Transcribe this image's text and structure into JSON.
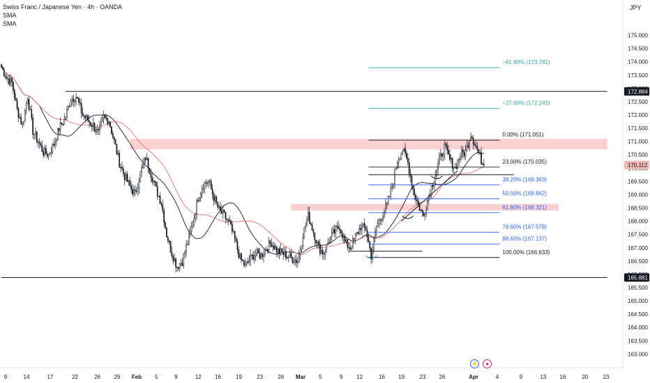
{
  "header": {
    "title": "Swiss Franc / Japanese Yen · 4h · OANDA",
    "indicators": [
      "SMA",
      "SMA"
    ],
    "currency": "JPY"
  },
  "colors": {
    "bull": "#131722",
    "bear": "#131722",
    "sma_fast": "#131722",
    "sma_slow": "#e57373",
    "fib_ext": "#26a69a",
    "fib_ret": "#2962ff",
    "zone": "#f8c9c9",
    "price_tag": "#f2b8b8",
    "level_tag": "#131722"
  },
  "bottom_icons": {
    "lightning": "lightning-icon",
    "record": "record-icon"
  },
  "chart_data": {
    "type": "candlestick",
    "symbol": "CHFJPY",
    "timeframe": "4h",
    "ylim": [
      162.8,
      175.8
    ],
    "y_ticks": [
      "163.000",
      "163.500",
      "164.000",
      "164.500",
      "165.000",
      "165.500",
      "166.000",
      "166.500",
      "167.000",
      "167.500",
      "168.000",
      "168.500",
      "169.000",
      "169.500",
      "170.000",
      "170.500",
      "171.000",
      "171.500",
      "172.000",
      "172.500",
      "173.000",
      "173.500",
      "174.000",
      "174.500",
      "175.000"
    ],
    "x_ticks": [
      {
        "label": "9",
        "i": 0
      },
      {
        "label": "14",
        "i": 16
      },
      {
        "label": "17",
        "i": 34
      },
      {
        "label": "22",
        "i": 53
      },
      {
        "label": "26",
        "i": 70
      },
      {
        "label": "29",
        "i": 85
      },
      {
        "label": "Feb",
        "i": 100
      },
      {
        "label": "5",
        "i": 115
      },
      {
        "label": "9",
        "i": 130
      },
      {
        "label": "12",
        "i": 147
      },
      {
        "label": "16",
        "i": 162
      },
      {
        "label": "19",
        "i": 178
      },
      {
        "label": "23",
        "i": 194
      },
      {
        "label": "26",
        "i": 210
      },
      {
        "label": "Mar",
        "i": 225
      },
      {
        "label": "5",
        "i": 240
      },
      {
        "label": "9",
        "i": 256
      },
      {
        "label": "12",
        "i": 270
      },
      {
        "label": "16",
        "i": 287
      },
      {
        "label": "19",
        "i": 302
      },
      {
        "label": "23",
        "i": 318
      },
      {
        "label": "26",
        "i": 333
      },
      {
        "label": "Apr",
        "i": 357
      },
      {
        "label": "4",
        "i": 375
      },
      {
        "label": "9",
        "i": 393
      },
      {
        "label": "13",
        "i": 410
      },
      {
        "label": "16",
        "i": 425
      },
      {
        "label": "20",
        "i": 442
      },
      {
        "label": "23",
        "i": 458
      }
    ],
    "key_prices": {
      "upper_level": "172.884",
      "lower_level": "165.881",
      "last": "170.112"
    },
    "last_price": 170.112,
    "support_zone": [
      166.7,
      166.7
    ],
    "zones": [
      {
        "from": 170.7,
        "to": 171.1,
        "i0": 98,
        "i1": 462
      },
      {
        "from": 168.4,
        "to": 168.65,
        "i0": 221,
        "i1": 425
      }
    ],
    "horizontal_levels": [
      {
        "price": 172.884,
        "i0": 49,
        "i1": 462
      },
      {
        "price": 165.881,
        "i0": 0,
        "i1": 462
      },
      {
        "price": 169.75,
        "i0": 280,
        "i1": 391
      },
      {
        "price": 166.87,
        "i0": 265,
        "i1": 321
      }
    ],
    "fib": {
      "i0": 280,
      "i1": 380,
      "levels": [
        {
          "ratio": -0.618,
          "price": 173.781,
          "label": "−61.80% (173.781)",
          "group": "ext"
        },
        {
          "ratio": -0.27,
          "price": 172.243,
          "label": "−27.00% (172.243)",
          "group": "ext"
        },
        {
          "ratio": 0.0,
          "price": 171.051,
          "label": "0.00% (171.051)",
          "group": "base"
        },
        {
          "ratio": 0.23,
          "price": 170.035,
          "label": "23.00% (170.035)",
          "group": "base"
        },
        {
          "ratio": 0.382,
          "price": 169.363,
          "label": "38.20% (169.363)",
          "group": "ret"
        },
        {
          "ratio": 0.5,
          "price": 168.842,
          "label": "50.00% (168.842)",
          "group": "ret"
        },
        {
          "ratio": 0.618,
          "price": 168.321,
          "label": "61.80% (168.321)",
          "group": "ret"
        },
        {
          "ratio": 0.786,
          "price": 167.578,
          "label": "78.60% (167.578)",
          "group": "ret"
        },
        {
          "ratio": 0.886,
          "price": 167.137,
          "label": "88.60% (167.137)",
          "group": "ret"
        },
        {
          "ratio": 1.0,
          "price": 166.633,
          "label": "100.00% (166.633)",
          "group": "base"
        }
      ]
    },
    "trendline": [
      [
        305,
        168.0
      ],
      [
        348,
        169.9
      ]
    ],
    "arcs": [
      {
        "i": 282,
        "price": 166.65
      },
      {
        "i": 310,
        "price": 168.15
      },
      {
        "i": 332,
        "price": 169.65
      }
    ],
    "series_waypoints": [
      [
        0,
        173.8
      ],
      [
        4,
        173.4
      ],
      [
        8,
        173.2
      ],
      [
        12,
        172.2
      ],
      [
        16,
        171.6
      ],
      [
        20,
        172.7
      ],
      [
        24,
        171.4
      ],
      [
        28,
        171.0
      ],
      [
        32,
        170.6
      ],
      [
        36,
        170.5
      ],
      [
        40,
        170.9
      ],
      [
        44,
        171.5
      ],
      [
        48,
        171.8
      ],
      [
        53,
        172.6
      ],
      [
        57,
        172.7
      ],
      [
        62,
        172.0
      ],
      [
        66,
        171.8
      ],
      [
        70,
        171.6
      ],
      [
        74,
        171.3
      ],
      [
        78,
        171.9
      ],
      [
        82,
        171.8
      ],
      [
        86,
        171.0
      ],
      [
        90,
        170.2
      ],
      [
        94,
        169.7
      ],
      [
        98,
        169.3
      ],
      [
        102,
        169.0
      ],
      [
        106,
        169.8
      ],
      [
        110,
        170.4
      ],
      [
        114,
        169.8
      ],
      [
        118,
        169.2
      ],
      [
        122,
        168.7
      ],
      [
        126,
        167.5
      ],
      [
        130,
        166.8
      ],
      [
        134,
        166.3
      ],
      [
        138,
        166.5
      ],
      [
        142,
        167.2
      ],
      [
        146,
        167.9
      ],
      [
        150,
        168.9
      ],
      [
        154,
        169.4
      ],
      [
        158,
        169.5
      ],
      [
        162,
        168.9
      ],
      [
        166,
        168.4
      ],
      [
        170,
        168.2
      ],
      [
        174,
        167.9
      ],
      [
        178,
        167.3
      ],
      [
        182,
        166.6
      ],
      [
        186,
        166.3
      ],
      [
        190,
        166.6
      ],
      [
        194,
        166.8
      ],
      [
        198,
        166.7
      ],
      [
        202,
        167.0
      ],
      [
        206,
        167.2
      ],
      [
        210,
        166.9
      ],
      [
        214,
        166.8
      ],
      [
        218,
        166.7
      ],
      [
        222,
        166.6
      ],
      [
        226,
        166.5
      ],
      [
        230,
        167.5
      ],
      [
        234,
        168.2
      ],
      [
        238,
        167.6
      ],
      [
        242,
        167.0
      ],
      [
        246,
        166.8
      ],
      [
        250,
        167.3
      ],
      [
        254,
        167.6
      ],
      [
        258,
        167.8
      ],
      [
        262,
        167.2
      ],
      [
        266,
        167.0
      ],
      [
        270,
        167.4
      ],
      [
        274,
        167.8
      ],
      [
        278,
        167.7
      ],
      [
        282,
        166.7
      ],
      [
        286,
        167.8
      ],
      [
        290,
        168.2
      ],
      [
        294,
        168.6
      ],
      [
        298,
        169.3
      ],
      [
        302,
        170.3
      ],
      [
        306,
        170.7
      ],
      [
        310,
        170.2
      ],
      [
        314,
        169.2
      ],
      [
        318,
        168.6
      ],
      [
        322,
        168.2
      ],
      [
        326,
        169.0
      ],
      [
        330,
        169.6
      ],
      [
        334,
        170.3
      ],
      [
        338,
        170.8
      ],
      [
        342,
        170.3
      ],
      [
        346,
        170.0
      ],
      [
        350,
        170.5
      ],
      [
        354,
        170.6
      ],
      [
        358,
        171.3
      ],
      [
        362,
        170.8
      ],
      [
        366,
        170.3
      ],
      [
        368,
        170.1
      ]
    ]
  }
}
